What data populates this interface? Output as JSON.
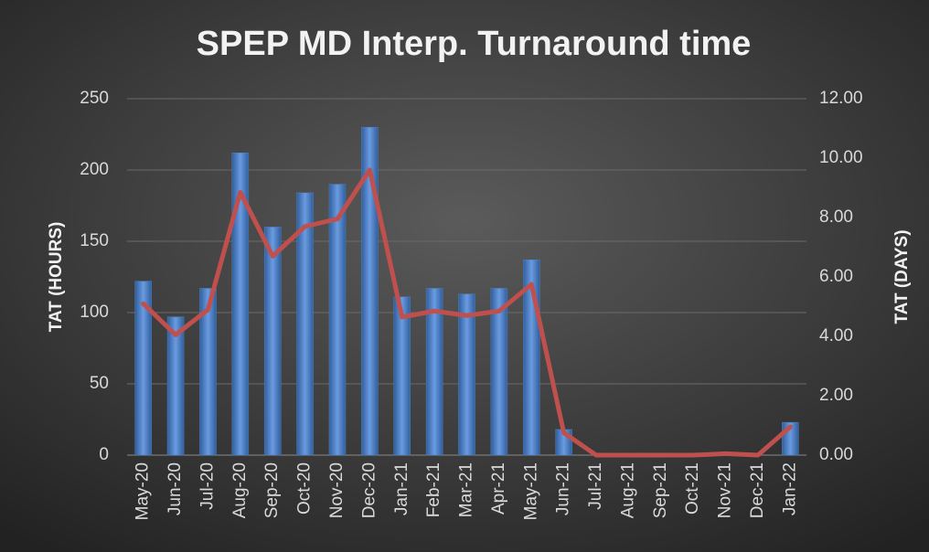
{
  "chart_data": {
    "type": "bar-line",
    "title": "SPEP MD Interp. Turnaround time",
    "y_label": "TAT (HOURS)",
    "y2_label": "TAT (DAYS)",
    "categories": [
      "May-20",
      "Jun-20",
      "Jul-20",
      "Aug-20",
      "Sep-20",
      "Oct-20",
      "Nov-20",
      "Dec-20",
      "Jan-21",
      "Feb-21",
      "Mar-21",
      "Apr-21",
      "May-21",
      "Jun-21",
      "Jul-21",
      "Aug-21",
      "Sep-21",
      "Oct-21",
      "Nov-21",
      "Dec-21",
      "Jan-22"
    ],
    "series": [
      {
        "type": "bar",
        "color": "#4f81bd",
        "axis": "y",
        "values": [
          122,
          97,
          117,
          212,
          160,
          184,
          190,
          230,
          111,
          117,
          113,
          117,
          137,
          18,
          0,
          0,
          0,
          0,
          0,
          0,
          23
        ]
      },
      {
        "type": "line",
        "color": "#c0504d",
        "axis": "y2",
        "values": [
          5.1,
          4.05,
          4.9,
          8.85,
          6.7,
          7.7,
          7.95,
          9.6,
          4.65,
          4.85,
          4.7,
          4.85,
          5.75,
          0.75,
          0,
          0,
          0,
          0,
          0.05,
          0,
          0.95
        ]
      }
    ],
    "ylim": [
      0,
      250
    ],
    "yticks": [
      0,
      50,
      100,
      150,
      200,
      250
    ],
    "y2lim": [
      0,
      12
    ],
    "y2ticks": [
      {
        "value": 0,
        "label": "0.00"
      },
      {
        "value": 2,
        "label": "2.00"
      },
      {
        "value": 4,
        "label": "4.00"
      },
      {
        "value": 6,
        "label": "6.00"
      },
      {
        "value": 8,
        "label": "8.00"
      },
      {
        "value": 10,
        "label": "10.00"
      },
      {
        "value": 12,
        "label": "12.00"
      }
    ],
    "grid": true
  }
}
